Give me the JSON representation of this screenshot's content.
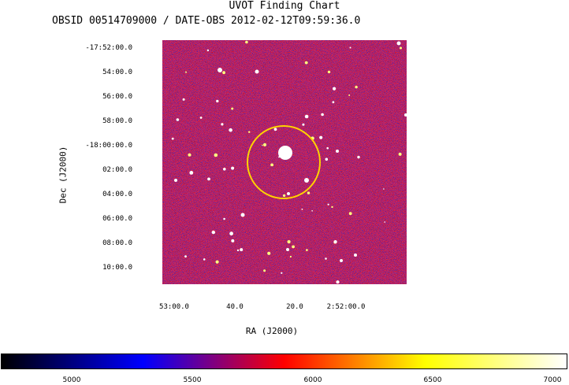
{
  "chart_title": "UVOT Finding Chart",
  "subtitle": "OBSID 00514709000 / DATE-OBS 2012-02-12T09:59:36.0",
  "axes": {
    "ylabel": "Dec (J2000)",
    "xlabel": "RA (J2000)",
    "dec_ticks": [
      "-17:52:00.0",
      "54:00.0",
      "56:00.0",
      "58:00.0",
      "-18:00:00.0",
      "02:00.0",
      "04:00.0",
      "06:00.0",
      "08:00.0",
      "10:00.0"
    ],
    "ra_ticks": [
      "53:00.0",
      "40.0",
      "20.0",
      "2:52:00.0"
    ]
  },
  "colorbar": {
    "ticks": [
      "5000",
      "5500",
      "6000",
      "6500",
      "7000"
    ],
    "colors": [
      "#000000",
      "#0000ff",
      "#ff0000",
      "#ffff00",
      "#ffffff"
    ]
  },
  "marker": {
    "color": "#ffd400",
    "shape": "circle"
  }
}
